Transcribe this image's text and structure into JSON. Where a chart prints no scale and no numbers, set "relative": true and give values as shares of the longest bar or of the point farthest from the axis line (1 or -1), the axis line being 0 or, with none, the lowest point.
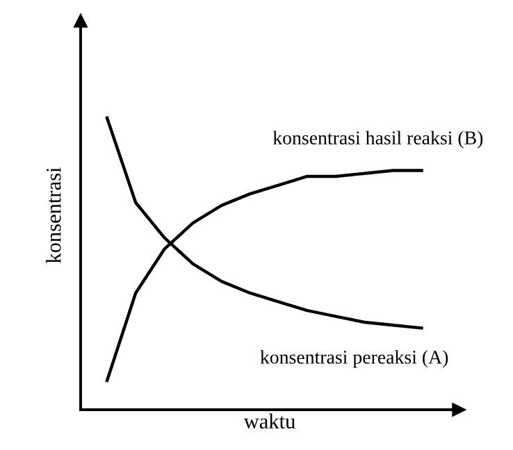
{
  "chart_data": {
    "type": "line",
    "relative": true,
    "xlabel": "waktu",
    "ylabel": "konsentrasi",
    "tick_labels": false,
    "legend": false,
    "marker": "none",
    "line_style": "solid",
    "categories": [
      null,
      null,
      null,
      null,
      null,
      null,
      null,
      null,
      null,
      null,
      null,
      null
    ],
    "series": [
      {
        "name": "konsentrasi hasil reaksi (B)",
        "color": "#000000",
        "values": [
          0.1,
          0.4,
          0.55,
          0.64,
          0.7,
          0.74,
          0.77,
          0.8,
          0.8,
          0.81,
          0.82,
          0.82
        ]
      },
      {
        "name": "konsentrasi pereaksi (A)",
        "color": "#000000",
        "values": [
          1,
          0.71,
          0.59,
          0.5,
          0.44,
          0.4,
          0.37,
          0.34,
          0.32,
          0.3,
          0.29,
          0.28
        ]
      }
    ]
  }
}
